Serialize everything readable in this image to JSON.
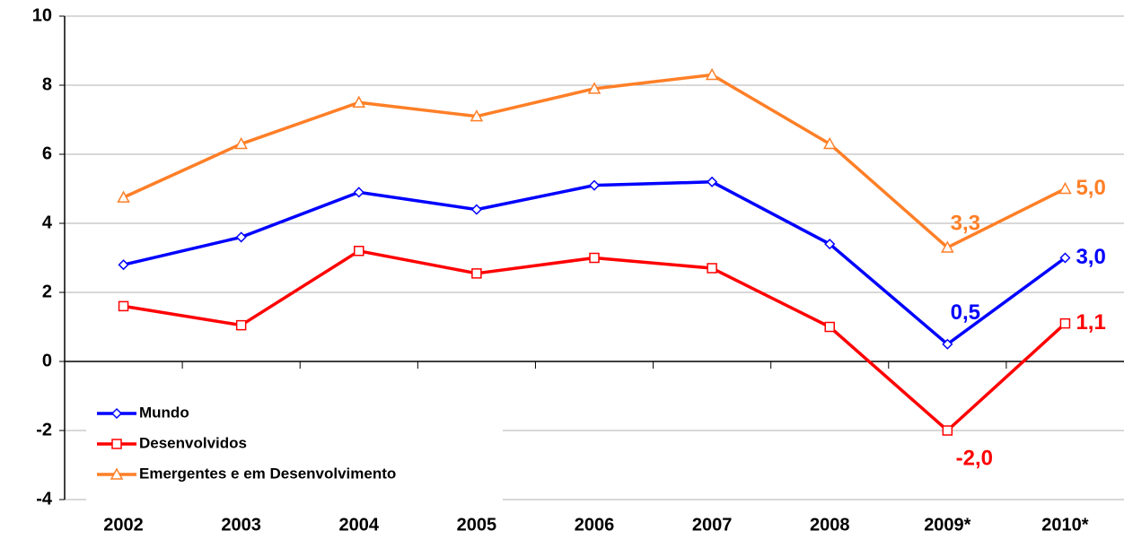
{
  "chart_data": {
    "type": "line",
    "categories": [
      "2002",
      "2003",
      "2004",
      "2005",
      "2006",
      "2007",
      "2008",
      "2009*",
      "2010*"
    ],
    "series": [
      {
        "name": "Mundo",
        "color": "#0000ff",
        "marker": "diamond",
        "values": [
          2.8,
          3.6,
          4.9,
          4.4,
          5.1,
          5.2,
          3.4,
          0.5,
          3.0
        ],
        "value_labels": [
          null,
          null,
          null,
          null,
          null,
          null,
          null,
          "0,5",
          "3,0"
        ]
      },
      {
        "name": "Desenvolvidos",
        "color": "#ff0000",
        "marker": "square",
        "values": [
          1.6,
          1.05,
          3.2,
          2.55,
          3.0,
          2.7,
          1.0,
          -2.0,
          1.1
        ],
        "value_labels": [
          null,
          null,
          null,
          null,
          null,
          null,
          null,
          "-2,0",
          "1,1"
        ]
      },
      {
        "name": "Emergentes e em Desenvolvimento",
        "color": "#ff7f27",
        "marker": "triangle",
        "values": [
          4.75,
          6.3,
          7.5,
          7.1,
          7.9,
          8.3,
          6.3,
          3.3,
          5.0
        ],
        "value_labels": [
          null,
          null,
          null,
          null,
          null,
          null,
          null,
          "3,3",
          "5,0"
        ]
      }
    ],
    "ylim": [
      -4,
      10
    ],
    "yticks": [
      -4,
      -2,
      0,
      2,
      4,
      6,
      8,
      10
    ],
    "grid": true,
    "legend": "lower left"
  }
}
